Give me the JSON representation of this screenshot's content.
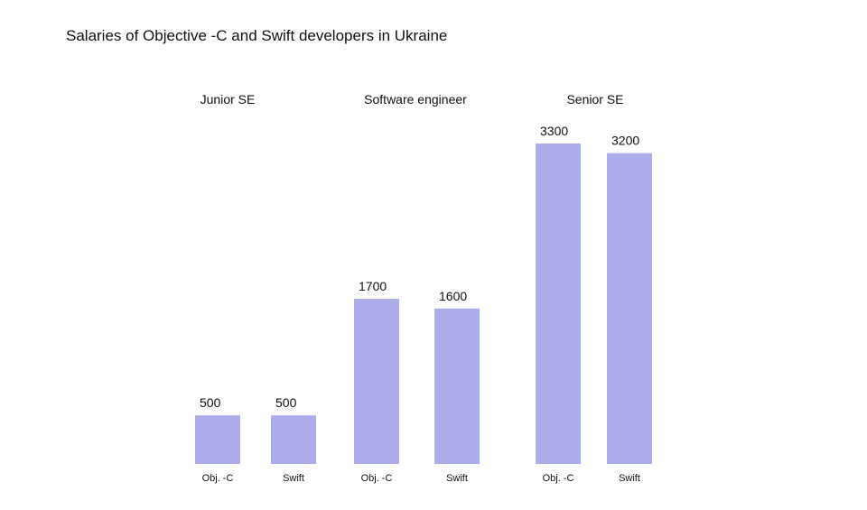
{
  "chart_data": {
    "type": "bar",
    "title": "Salaries of Objective -C and Swift developers in Ukraine",
    "groups": [
      "Junior SE",
      "Software engineer",
      "Senior SE"
    ],
    "series_labels": [
      "Obj. -C",
      "Swift"
    ],
    "values": [
      [
        500,
        500
      ],
      [
        1700,
        1600
      ],
      [
        3300,
        3200
      ]
    ],
    "bar_color": "#adadeb",
    "grid": false,
    "legend": "none"
  }
}
